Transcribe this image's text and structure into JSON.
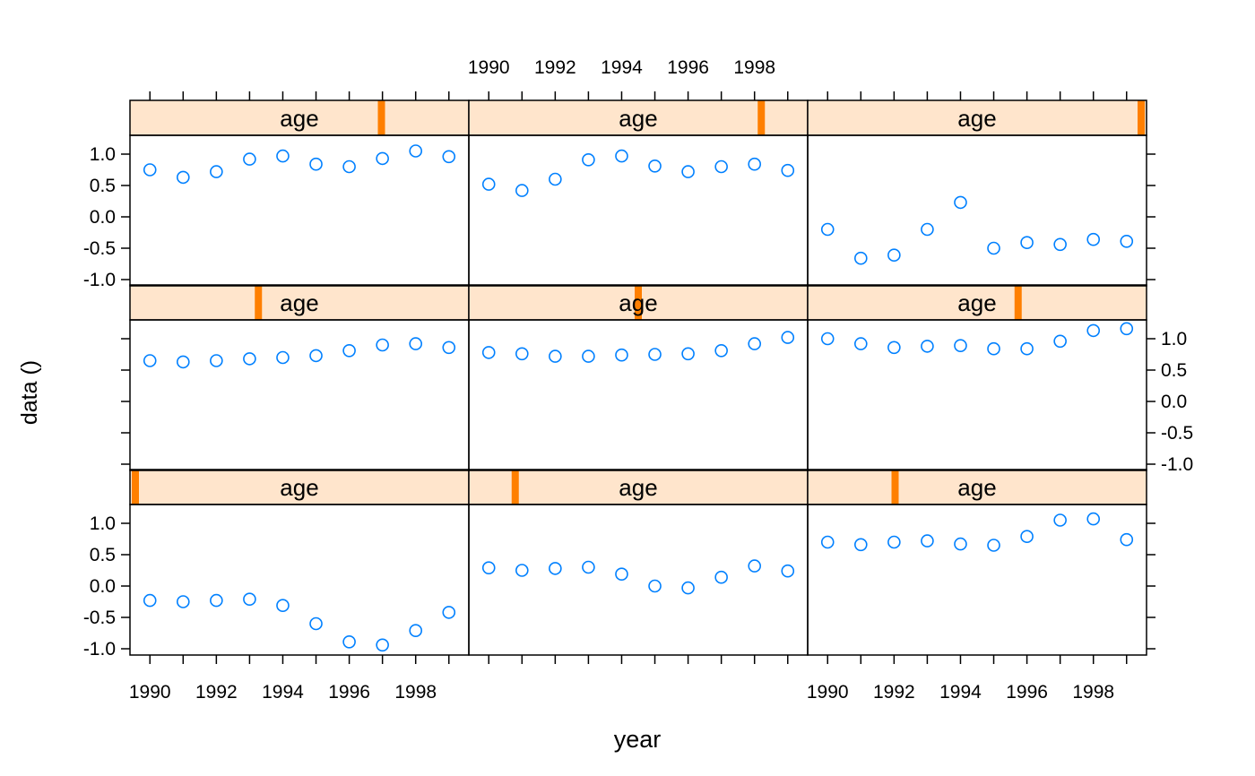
{
  "chart_data": {
    "type": "scatter",
    "xlabel": "year",
    "ylabel": "data ()",
    "xlim": [
      1989.4,
      1999.6
    ],
    "ylim": [
      -1.1,
      1.3
    ],
    "x_ticks": [
      1990,
      1991,
      1992,
      1993,
      1994,
      1995,
      1996,
      1997,
      1998,
      1999
    ],
    "x_tick_labels": [
      "1990",
      "1992",
      "1994",
      "1996",
      "1998"
    ],
    "y_ticks": [
      -1.0,
      -0.5,
      0.0,
      0.5,
      1.0
    ],
    "y_tick_labels": [
      "-1.0",
      "-0.5",
      "0.0",
      "0.5",
      "1.0"
    ],
    "years": [
      1990,
      1991,
      1992,
      1993,
      1994,
      1995,
      1996,
      1997,
      1998,
      1999
    ],
    "strip_label": "age",
    "grid": false,
    "colors": {
      "points": "#0080ff",
      "strip_bg": "#ffe5cc",
      "strip_marker": "#ff7f00",
      "frame": "#000000"
    },
    "panels": [
      {
        "row": 0,
        "col": 0,
        "strip": "age",
        "level_fraction": 0.0,
        "values": [
          -0.23,
          -0.25,
          -0.23,
          -0.21,
          -0.31,
          -0.6,
          -0.89,
          -0.94,
          -0.71,
          -0.42
        ]
      },
      {
        "row": 0,
        "col": 1,
        "strip": "age",
        "level_fraction": 0.125,
        "values": [
          0.29,
          0.25,
          0.28,
          0.3,
          0.19,
          0.0,
          -0.03,
          0.14,
          0.32,
          0.24
        ]
      },
      {
        "row": 0,
        "col": 2,
        "strip": "age",
        "level_fraction": 0.25,
        "values": [
          0.7,
          0.66,
          0.7,
          0.72,
          0.67,
          0.65,
          0.79,
          1.05,
          1.07,
          0.74
        ]
      },
      {
        "row": 1,
        "col": 0,
        "strip": "age",
        "level_fraction": 0.375,
        "values": [
          0.65,
          0.63,
          0.65,
          0.68,
          0.7,
          0.73,
          0.81,
          0.9,
          0.92,
          0.86
        ]
      },
      {
        "row": 1,
        "col": 1,
        "strip": "age",
        "level_fraction": 0.5,
        "values": [
          0.78,
          0.76,
          0.72,
          0.72,
          0.74,
          0.75,
          0.76,
          0.81,
          0.92,
          1.02
        ]
      },
      {
        "row": 1,
        "col": 2,
        "strip": "age",
        "level_fraction": 0.625,
        "values": [
          1.0,
          0.92,
          0.86,
          0.88,
          0.89,
          0.84,
          0.84,
          0.96,
          1.13,
          1.16
        ]
      },
      {
        "row": 2,
        "col": 0,
        "strip": "age",
        "level_fraction": 0.75,
        "values": [
          0.75,
          0.63,
          0.72,
          0.92,
          0.97,
          0.84,
          0.8,
          0.93,
          1.05,
          0.96
        ]
      },
      {
        "row": 2,
        "col": 1,
        "strip": "age",
        "level_fraction": 0.875,
        "values": [
          0.52,
          0.42,
          0.6,
          0.91,
          0.97,
          0.81,
          0.72,
          0.8,
          0.84,
          0.74
        ]
      },
      {
        "row": 2,
        "col": 2,
        "strip": "age",
        "level_fraction": 1.0,
        "values": [
          -0.2,
          -0.66,
          -0.61,
          -0.2,
          0.23,
          -0.5,
          -0.41,
          -0.44,
          -0.36,
          -0.39
        ]
      }
    ]
  }
}
